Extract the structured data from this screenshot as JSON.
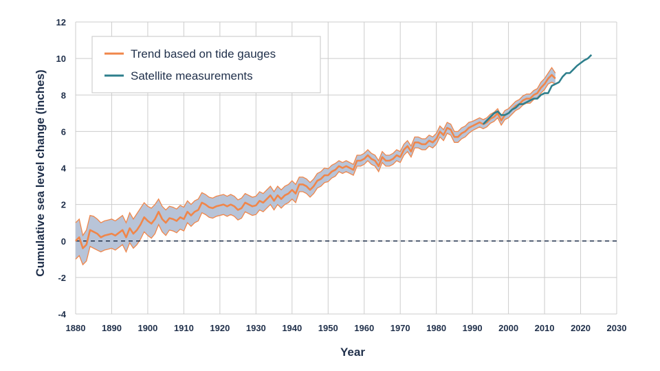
{
  "chart_data": {
    "type": "line",
    "title": "",
    "xlabel": "Year",
    "ylabel": "Cumulative sea level change (inches)",
    "xlim": [
      1880,
      2030
    ],
    "ylim": [
      -4,
      12
    ],
    "x_ticks": [
      1880,
      1890,
      1900,
      1910,
      1920,
      1930,
      1940,
      1950,
      1960,
      1970,
      1980,
      1990,
      2000,
      2010,
      2020,
      2030
    ],
    "y_ticks": [
      -4,
      -2,
      0,
      2,
      4,
      6,
      8,
      10,
      12
    ],
    "grid": true,
    "baseline": 0,
    "colors": {
      "tide": "#f0864a",
      "band": "#b8c4d8",
      "band_edge": "#9aa7bd",
      "satellite": "#2e7f8c",
      "axis_text": "#1f2f4a",
      "grid": "#cccccc",
      "baseline": "#1f2f4a"
    },
    "legend": {
      "position": "top-left",
      "entries": [
        {
          "label": "Trend based on tide gauges",
          "color": "#f0864a"
        },
        {
          "label": "Satellite measurements",
          "color": "#2e7f8c"
        }
      ]
    },
    "series": [
      {
        "name": "Trend based on tide gauges",
        "x": [
          1880,
          1881,
          1882,
          1883,
          1884,
          1885,
          1886,
          1887,
          1888,
          1889,
          1890,
          1891,
          1892,
          1893,
          1894,
          1895,
          1896,
          1897,
          1898,
          1899,
          1900,
          1901,
          1902,
          1903,
          1904,
          1905,
          1906,
          1907,
          1908,
          1909,
          1910,
          1911,
          1912,
          1913,
          1914,
          1915,
          1916,
          1917,
          1918,
          1919,
          1920,
          1921,
          1922,
          1923,
          1924,
          1925,
          1926,
          1927,
          1928,
          1929,
          1930,
          1931,
          1932,
          1933,
          1934,
          1935,
          1936,
          1937,
          1938,
          1939,
          1940,
          1941,
          1942,
          1943,
          1944,
          1945,
          1946,
          1947,
          1948,
          1949,
          1950,
          1951,
          1952,
          1953,
          1954,
          1955,
          1956,
          1957,
          1958,
          1959,
          1960,
          1961,
          1962,
          1963,
          1964,
          1965,
          1966,
          1967,
          1968,
          1969,
          1970,
          1971,
          1972,
          1973,
          1974,
          1975,
          1976,
          1977,
          1978,
          1979,
          1980,
          1981,
          1982,
          1983,
          1984,
          1985,
          1986,
          1987,
          1988,
          1989,
          1990,
          1991,
          1992,
          1993,
          1994,
          1995,
          1996,
          1997,
          1998,
          1999,
          2000,
          2001,
          2002,
          2003,
          2004,
          2005,
          2006,
          2007,
          2008,
          2009,
          2010,
          2011,
          2012,
          2013
        ],
        "values": [
          0.0,
          0.2,
          -0.4,
          -0.2,
          0.6,
          0.5,
          0.4,
          0.2,
          0.3,
          0.35,
          0.4,
          0.3,
          0.45,
          0.6,
          0.2,
          0.7,
          0.4,
          0.6,
          0.9,
          1.3,
          1.1,
          0.95,
          1.2,
          1.6,
          1.2,
          1.0,
          1.25,
          1.2,
          1.1,
          1.3,
          1.2,
          1.6,
          1.4,
          1.6,
          1.7,
          2.1,
          2.0,
          1.85,
          1.8,
          1.9,
          1.95,
          2.0,
          1.9,
          2.0,
          1.9,
          1.7,
          1.8,
          2.1,
          2.0,
          1.9,
          1.95,
          2.2,
          2.1,
          2.3,
          2.5,
          2.2,
          2.5,
          2.3,
          2.5,
          2.6,
          2.8,
          2.6,
          3.1,
          3.1,
          3.0,
          2.8,
          3.0,
          3.3,
          3.4,
          3.6,
          3.6,
          3.8,
          3.9,
          4.1,
          4.0,
          4.1,
          4.0,
          3.9,
          4.4,
          4.4,
          4.5,
          4.7,
          4.5,
          4.4,
          4.1,
          4.6,
          4.4,
          4.4,
          4.5,
          4.7,
          4.6,
          5.0,
          5.2,
          4.9,
          5.4,
          5.4,
          5.3,
          5.3,
          5.5,
          5.4,
          5.6,
          6.0,
          5.8,
          6.2,
          6.1,
          5.7,
          5.7,
          5.9,
          6.0,
          6.2,
          6.3,
          6.4,
          6.5,
          6.4,
          6.5,
          6.7,
          6.8,
          7.0,
          6.6,
          6.9,
          7.0,
          7.2,
          7.4,
          7.5,
          7.7,
          7.8,
          7.8,
          8.0,
          8.1,
          8.4,
          8.6,
          8.9,
          9.1,
          8.9
        ],
        "upper": [
          1.0,
          1.2,
          0.3,
          0.6,
          1.4,
          1.35,
          1.2,
          1.0,
          1.1,
          1.15,
          1.2,
          1.1,
          1.25,
          1.4,
          1.0,
          1.55,
          1.2,
          1.5,
          1.8,
          2.1,
          1.9,
          1.8,
          2.0,
          2.3,
          1.9,
          1.7,
          1.9,
          1.85,
          1.75,
          1.95,
          1.85,
          2.2,
          2.0,
          2.2,
          2.3,
          2.65,
          2.55,
          2.4,
          2.35,
          2.45,
          2.5,
          2.55,
          2.45,
          2.55,
          2.45,
          2.25,
          2.35,
          2.6,
          2.5,
          2.4,
          2.45,
          2.7,
          2.6,
          2.8,
          3.0,
          2.7,
          3.0,
          2.8,
          3.0,
          3.1,
          3.3,
          3.1,
          3.5,
          3.5,
          3.4,
          3.2,
          3.4,
          3.7,
          3.8,
          4.0,
          3.95,
          4.15,
          4.25,
          4.4,
          4.3,
          4.4,
          4.3,
          4.2,
          4.7,
          4.7,
          4.8,
          5.0,
          4.8,
          4.7,
          4.4,
          4.9,
          4.7,
          4.7,
          4.8,
          5.0,
          4.9,
          5.3,
          5.5,
          5.2,
          5.7,
          5.7,
          5.6,
          5.6,
          5.8,
          5.7,
          5.9,
          6.3,
          6.1,
          6.5,
          6.4,
          6.0,
          6.0,
          6.2,
          6.3,
          6.5,
          6.55,
          6.65,
          6.75,
          6.65,
          6.75,
          6.95,
          7.05,
          7.25,
          6.85,
          7.15,
          7.25,
          7.45,
          7.65,
          7.75,
          7.95,
          8.05,
          8.05,
          8.25,
          8.35,
          8.7,
          8.9,
          9.2,
          9.5,
          9.2
        ],
        "lower": [
          -1.0,
          -0.8,
          -1.3,
          -1.1,
          -0.3,
          -0.4,
          -0.5,
          -0.6,
          -0.5,
          -0.45,
          -0.4,
          -0.5,
          -0.35,
          -0.2,
          -0.6,
          -0.1,
          -0.4,
          -0.2,
          0.1,
          0.5,
          0.3,
          0.15,
          0.4,
          0.9,
          0.5,
          0.3,
          0.6,
          0.55,
          0.45,
          0.65,
          0.55,
          1.0,
          0.8,
          1.0,
          1.1,
          1.55,
          1.45,
          1.3,
          1.25,
          1.35,
          1.4,
          1.45,
          1.35,
          1.45,
          1.35,
          1.15,
          1.25,
          1.6,
          1.5,
          1.4,
          1.45,
          1.7,
          1.6,
          1.8,
          2.0,
          1.7,
          2.0,
          1.8,
          2.0,
          2.1,
          2.3,
          2.1,
          2.7,
          2.7,
          2.6,
          2.4,
          2.6,
          2.9,
          3.0,
          3.2,
          3.25,
          3.45,
          3.55,
          3.8,
          3.7,
          3.8,
          3.7,
          3.6,
          4.1,
          4.1,
          4.2,
          4.4,
          4.2,
          4.1,
          3.8,
          4.3,
          4.1,
          4.1,
          4.2,
          4.4,
          4.3,
          4.7,
          4.9,
          4.6,
          5.1,
          5.1,
          5.0,
          5.0,
          5.2,
          5.1,
          5.3,
          5.7,
          5.5,
          5.9,
          5.8,
          5.4,
          5.4,
          5.6,
          5.7,
          5.9,
          6.05,
          6.15,
          6.25,
          6.15,
          6.25,
          6.45,
          6.55,
          6.75,
          6.35,
          6.65,
          6.75,
          6.95,
          7.15,
          7.25,
          7.45,
          7.55,
          7.55,
          7.75,
          7.85,
          8.1,
          8.3,
          8.6,
          8.7,
          8.6
        ]
      },
      {
        "name": "Satellite measurements",
        "x": [
          1993,
          1994,
          1995,
          1996,
          1997,
          1998,
          1999,
          2000,
          2001,
          2002,
          2003,
          2004,
          2005,
          2006,
          2007,
          2008,
          2009,
          2010,
          2011,
          2012,
          2013,
          2014,
          2015,
          2016,
          2017,
          2018,
          2019,
          2020,
          2021,
          2022,
          2023
        ],
        "values": [
          6.4,
          6.6,
          6.8,
          7.0,
          7.1,
          6.9,
          6.9,
          7.0,
          7.2,
          7.3,
          7.5,
          7.5,
          7.6,
          7.7,
          7.8,
          7.8,
          8.0,
          8.1,
          8.1,
          8.5,
          8.6,
          8.7,
          9.0,
          9.2,
          9.2,
          9.4,
          9.6,
          9.75,
          9.9,
          10.0,
          10.2
        ]
      }
    ]
  }
}
